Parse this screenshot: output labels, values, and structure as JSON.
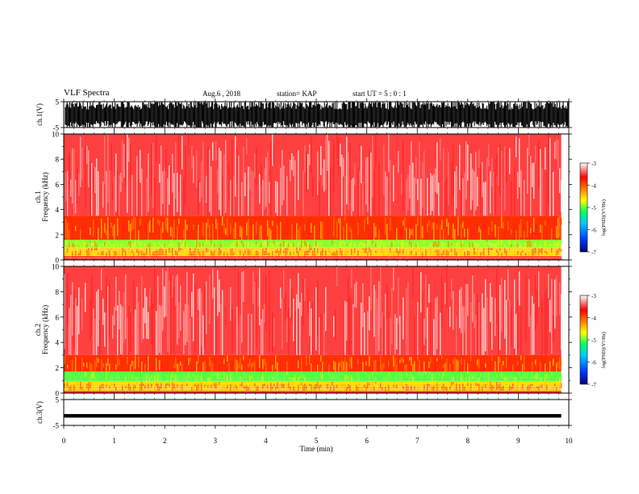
{
  "header": {
    "title": "VLF Spectra",
    "date": "Aug.6 , 2018",
    "station": "station= KAP",
    "start_ut": "start UT = 5 : 0 : 1"
  },
  "colors": {
    "spectrogram_background": "#ff3a3a",
    "waveform": "#000000",
    "colorbar_stops": [
      "#000080",
      "#0050ff",
      "#00c8ff",
      "#00ff50",
      "#ffff00",
      "#ff6000",
      "#ff0000",
      "#ffffff"
    ]
  },
  "chart_data": [
    {
      "type": "area",
      "id": "ch1-waveform",
      "ylabel": "ch.1(V)",
      "ylim": [
        -5,
        5
      ],
      "yticks": [
        "5",
        "-5"
      ],
      "xlim": [
        0,
        10
      ],
      "description_values": {
        "typical_range": [
          -4.5,
          4.5
        ],
        "data_end_min": 9.85
      }
    },
    {
      "type": "heatmap",
      "id": "ch1-spectrogram",
      "ylabel": "ch.1\nFrequency (kHz)",
      "ylim": [
        0,
        10
      ],
      "yticks": [
        "0",
        "2",
        "4",
        "6",
        "8",
        "10"
      ],
      "xlim": [
        0,
        10
      ],
      "data_end_min": 9.85,
      "bands_khz": [
        {
          "from": 0.0,
          "to": 0.3,
          "level": "red"
        },
        {
          "from": 0.3,
          "to": 1.0,
          "level": "yellow-red"
        },
        {
          "from": 1.0,
          "to": 1.6,
          "level": "green-yellow"
        },
        {
          "from": 1.6,
          "to": 3.5,
          "level": "orange-red"
        },
        {
          "from": 3.5,
          "to": 10.0,
          "level": "red-white"
        }
      ],
      "colorbar": {
        "label": "log(PSD)(V²/Hz)",
        "ticks": [
          "-3",
          "-4",
          "-5",
          "-6",
          "-7"
        ],
        "range": [
          -7,
          -3
        ]
      }
    },
    {
      "type": "heatmap",
      "id": "ch2-spectrogram",
      "ylabel": "ch.2\nFrequency (kHz)",
      "ylim": [
        0,
        10
      ],
      "yticks": [
        "0",
        "2",
        "4",
        "6",
        "8",
        "10"
      ],
      "xlim": [
        0,
        10
      ],
      "data_end_min": 9.85,
      "bands_khz": [
        {
          "from": 0.0,
          "to": 0.2,
          "level": "red"
        },
        {
          "from": 0.2,
          "to": 0.9,
          "level": "yellow-red"
        },
        {
          "from": 0.9,
          "to": 1.7,
          "level": "green"
        },
        {
          "from": 1.7,
          "to": 3.0,
          "level": "orange-red"
        },
        {
          "from": 3.0,
          "to": 10.0,
          "level": "red-white"
        }
      ],
      "colorbar": {
        "label": "log(PSD)(V²/Hz)",
        "ticks": [
          "-3",
          "-4",
          "-5",
          "-6",
          "-7"
        ],
        "range": [
          -7,
          -3
        ]
      }
    },
    {
      "type": "line",
      "id": "ch3-waveform",
      "ylabel": "ch.3(V)",
      "ylim": [
        -5,
        5
      ],
      "yticks": [
        "5",
        "-5"
      ],
      "xlim": [
        0,
        10
      ],
      "xlabel": "Time (min)",
      "xticks": [
        "0",
        "1",
        "2",
        "3",
        "4",
        "5",
        "6",
        "7",
        "8",
        "9",
        "10"
      ],
      "constant_value_v": -1.3,
      "data_end_min": 9.85
    }
  ]
}
